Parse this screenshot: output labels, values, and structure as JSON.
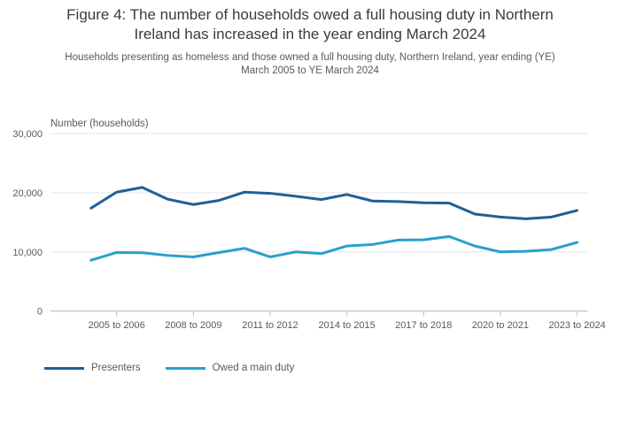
{
  "header": {
    "title_line1": "Figure 4: The number of households owed a full housing duty in Northern",
    "title_line2": "Ireland has increased in the year ending March 2024",
    "subtitle_line1": "Households presenting as homeless and those owned a full housing duty, Northern Ireland, year ending (YE)",
    "subtitle_line2": "March 2005 to YE March 2024"
  },
  "chart_data": {
    "type": "line",
    "title": "Figure 4: The number of households owed a full housing duty in Northern Ireland has increased in the year ending March 2024",
    "subtitle": "Households presenting as homeless and those owned a full housing duty, Northern Ireland, year ending (YE) March 2005 to YE March 2024",
    "ylabel": "Number (households)",
    "xlabel": "",
    "ylim": [
      0,
      30000
    ],
    "yticks": [
      0,
      10000,
      20000,
      30000
    ],
    "ytick_labels": [
      "0",
      "10,000",
      "20,000",
      "30,000"
    ],
    "categories": [
      "2004 to 2005",
      "2005 to 2006",
      "2006 to 2007",
      "2007 to 2008",
      "2008 to 2009",
      "2009 to 2010",
      "2010 to 2011",
      "2011 to 2012",
      "2012 to 2013",
      "2013 to 2014",
      "2014 to 2015",
      "2015 to 2016",
      "2016 to 2017",
      "2017 to 2018",
      "2018 to 2019",
      "2019 to 2020",
      "2020 to 2021",
      "2021 to 2022",
      "2022 to 2023",
      "2023 to 2024"
    ],
    "xtick_indices": [
      1,
      4,
      7,
      10,
      13,
      16,
      19
    ],
    "xtick_labels": [
      "2005 to 2006",
      "2008 to 2009",
      "2011 to 2012",
      "2014 to 2015",
      "2017 to 2018",
      "2020 to 2021",
      "2023 to 2024"
    ],
    "grid": true,
    "legend_position": "bottom-left",
    "series": [
      {
        "name": "Presenters",
        "color": "#206095",
        "values": [
          17400,
          20100,
          20900,
          18900,
          18000,
          18700,
          20100,
          19900,
          19400,
          18850,
          19700,
          18600,
          18500,
          18300,
          18250,
          16400,
          15900,
          15600,
          15900,
          17000
        ]
      },
      {
        "name": "Owed a main duty",
        "color": "#27A0CC",
        "values": [
          8600,
          9900,
          9850,
          9400,
          9150,
          9900,
          10600,
          9150,
          10000,
          9700,
          11000,
          11250,
          12000,
          12050,
          12600,
          11000,
          10000,
          10100,
          10400,
          11600
        ]
      }
    ],
    "colors": {
      "grid_line": "#e6e6e6",
      "axis_line": "#b3b3b3",
      "tick_mark": "#a9c2d6",
      "tick_label": "#595959"
    }
  },
  "legend": {
    "items": [
      {
        "label": "Presenters"
      },
      {
        "label": "Owed a main duty"
      }
    ]
  }
}
